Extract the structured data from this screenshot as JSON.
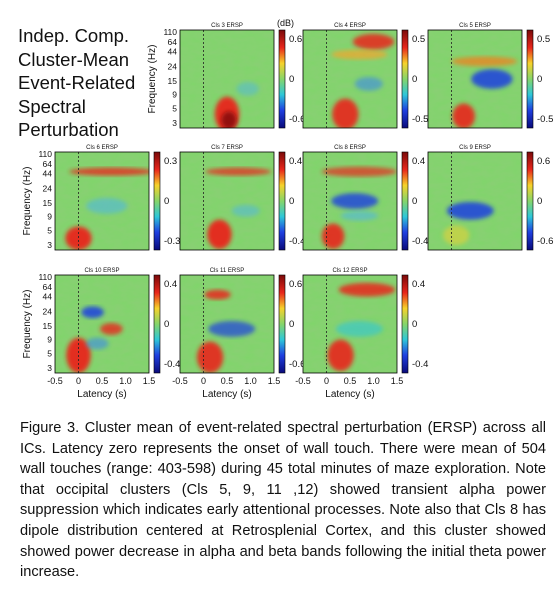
{
  "title_lines": [
    "Indep. Comp.",
    "Cluster-Mean",
    "Event-Related",
    "Spectral",
    "Perturbation"
  ],
  "y_axis_label": "Frequency (Hz)",
  "x_axis_label": "Latency (s)",
  "freq_ticks": [
    "110",
    "64",
    "44",
    "24",
    "15",
    "9",
    "5",
    "3"
  ],
  "latency_ticks": [
    "-0.5",
    "0",
    "0.5",
    "1.0",
    "1.5"
  ],
  "colorbar_unit": "(dB)",
  "panels": [
    {
      "label": "Cls 3 ERSP",
      "cb_max": "0.6",
      "cb_mid": "0",
      "cb_min": "-0.6"
    },
    {
      "label": "Cls 4 ERSP",
      "cb_max": "0.5",
      "cb_mid": "0",
      "cb_min": "-0.5"
    },
    {
      "label": "Cls 5 ERSP",
      "cb_max": "0.5",
      "cb_mid": "0",
      "cb_min": "-0.5"
    },
    {
      "label": "Cls 6 ERSP",
      "cb_max": "0.3",
      "cb_mid": "0",
      "cb_min": "-0.3"
    },
    {
      "label": "Cls 7 ERSP",
      "cb_max": "0.4",
      "cb_mid": "0",
      "cb_min": "-0.4"
    },
    {
      "label": "Cls 8 ERSP",
      "cb_max": "0.4",
      "cb_mid": "0",
      "cb_min": "-0.4"
    },
    {
      "label": "Cls 9 ERSP",
      "cb_max": "0.6",
      "cb_mid": "0",
      "cb_min": "-0.6"
    },
    {
      "label": "Cls 10 ERSP",
      "cb_max": "0.4",
      "cb_mid": "0",
      "cb_min": "-0.4"
    },
    {
      "label": "Cls 11 ERSP",
      "cb_max": "0.6",
      "cb_mid": "0",
      "cb_min": "-0.6"
    },
    {
      "label": "Cls 12 ERSP",
      "cb_max": "0.4",
      "cb_mid": "0",
      "cb_min": "-0.4"
    }
  ],
  "caption": "Figure 3. Cluster mean of event-related spectral perturbation (ERSP) across all ICs. Latency zero represents the onset of wall touch. There were mean of 504 wall touches (range: 403-598) during 45 total minutes of maze exploration. Note that occipital clusters (Cls 5, 9, 11 ,12) showed transient alpha power suppression which indicates early attentional processes. Note also that Cls 8 has dipole distribution centered at Retrosplenial Cortex, and this cluster showed showed power decrease in alpha and beta bands following the initial theta power increase.",
  "colors": {
    "positive": "#c0161a",
    "neutral": "#7fd56a",
    "negative": "#1f3fe0"
  }
}
